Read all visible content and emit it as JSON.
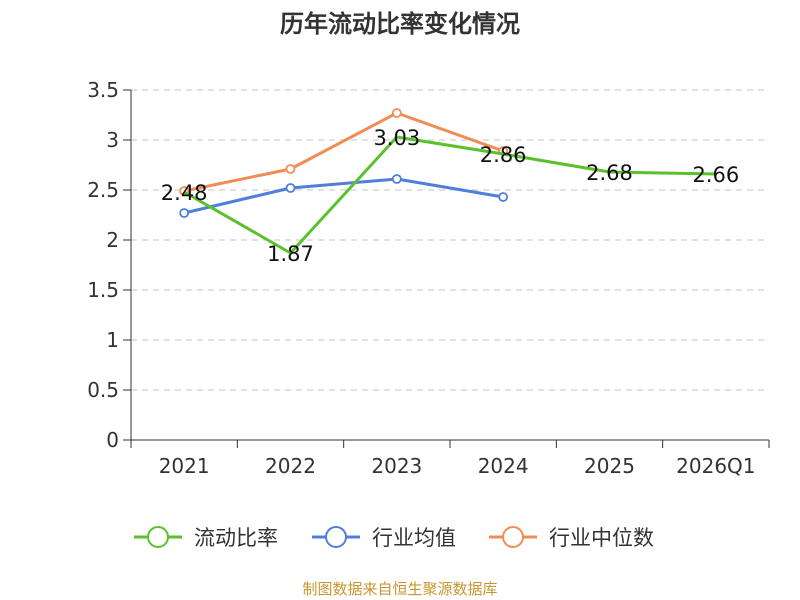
{
  "chart_data": {
    "type": "line",
    "title": "历年流动比率变化情况",
    "categories": [
      "2021",
      "2022",
      "2023",
      "2024",
      "2025",
      "2026Q1"
    ],
    "ylim": [
      0,
      3.5
    ],
    "yticks": [
      "0",
      "0.5",
      "1",
      "1.5",
      "2",
      "2.5",
      "3",
      "3.5"
    ],
    "grid": true,
    "legend_position": "bottom",
    "series": [
      {
        "name": "流动比率",
        "color": "#5bc12b",
        "values": [
          2.48,
          1.87,
          3.03,
          2.86,
          2.68,
          2.66
        ],
        "labels": [
          "2.48",
          "1.87",
          "3.03",
          "2.86",
          "2.68",
          "2.66"
        ]
      },
      {
        "name": "行业均值",
        "color": "#4f7fdc",
        "values": [
          2.27,
          2.52,
          2.61,
          2.43,
          null,
          null
        ]
      },
      {
        "name": "行业中位数",
        "color": "#f28c55",
        "values": [
          2.49,
          2.71,
          3.27,
          2.89,
          null,
          null
        ]
      }
    ],
    "source": "制图数据来自恒生聚源数据库"
  }
}
